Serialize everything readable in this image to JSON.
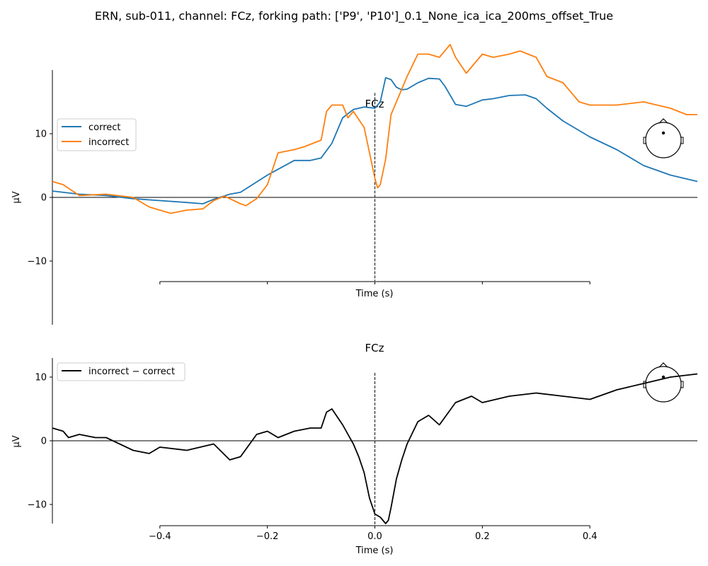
{
  "figure": {
    "suptitle": "ERN, sub-011, channel: FCz, forking path: ['P9', 'P10']_0.1_None_ica_ica_200ms_offset_True"
  },
  "chart_data": [
    {
      "type": "line",
      "title": "FCz",
      "xlabel": "Time (s)",
      "ylabel": "µV",
      "xlim": [
        -0.6,
        0.6
      ],
      "ylim": [
        -20,
        20
      ],
      "yticks": [
        -10,
        0,
        10
      ],
      "ytick_labels": [
        "−10",
        "0",
        "10"
      ],
      "xticks": [
        -0.4,
        -0.2,
        0.0,
        0.2,
        0.4
      ],
      "xtick_labels": [
        "",
        "",
        "",
        "",
        ""
      ],
      "vline_x": 0.0,
      "hline_y": 0,
      "grid": false,
      "legend_position": "center-left",
      "series": [
        {
          "name": "correct",
          "color": "#1f77b4",
          "x": [
            -0.6,
            -0.55,
            -0.5,
            -0.45,
            -0.4,
            -0.35,
            -0.32,
            -0.3,
            -0.27,
            -0.25,
            -0.2,
            -0.15,
            -0.12,
            -0.1,
            -0.08,
            -0.06,
            -0.04,
            -0.02,
            0.0,
            0.01,
            0.02,
            0.03,
            0.04,
            0.05,
            0.06,
            0.08,
            0.1,
            0.12,
            0.13,
            0.15,
            0.17,
            0.2,
            0.22,
            0.25,
            0.28,
            0.3,
            0.32,
            0.35,
            0.4,
            0.45,
            0.5,
            0.55,
            0.6
          ],
          "y": [
            1.0,
            0.5,
            0.3,
            -0.2,
            -0.5,
            -0.8,
            -1.0,
            -0.3,
            0.5,
            0.8,
            3.5,
            5.8,
            5.8,
            6.2,
            8.5,
            12.5,
            13.8,
            14.2,
            14.0,
            15.0,
            18.8,
            18.5,
            17.3,
            16.9,
            17.0,
            18.0,
            18.7,
            18.6,
            17.5,
            14.6,
            14.3,
            15.3,
            15.5,
            16.0,
            16.1,
            15.5,
            14.0,
            12.0,
            9.5,
            7.5,
            5.0,
            3.5,
            2.5
          ]
        },
        {
          "name": "incorrect",
          "color": "#ff7f0e",
          "x": [
            -0.6,
            -0.58,
            -0.55,
            -0.5,
            -0.45,
            -0.42,
            -0.4,
            -0.38,
            -0.35,
            -0.32,
            -0.3,
            -0.28,
            -0.25,
            -0.24,
            -0.22,
            -0.2,
            -0.18,
            -0.15,
            -0.13,
            -0.1,
            -0.09,
            -0.08,
            -0.06,
            -0.05,
            -0.04,
            -0.02,
            -0.01,
            0.0,
            0.005,
            0.01,
            0.02,
            0.03,
            0.04,
            0.06,
            0.08,
            0.1,
            0.12,
            0.14,
            0.15,
            0.17,
            0.2,
            0.22,
            0.25,
            0.27,
            0.3,
            0.32,
            0.35,
            0.38,
            0.4,
            0.45,
            0.5,
            0.55,
            0.58,
            0.6
          ],
          "y": [
            2.5,
            2.0,
            0.3,
            0.5,
            0.0,
            -1.5,
            -2.0,
            -2.5,
            -2.0,
            -1.8,
            -0.5,
            0.2,
            -1.0,
            -1.3,
            -0.2,
            2.0,
            7.0,
            7.5,
            8.0,
            9.0,
            13.5,
            14.5,
            14.5,
            12.5,
            13.5,
            11.0,
            7.0,
            3.0,
            1.5,
            2.0,
            6.0,
            13.0,
            15.0,
            19.0,
            22.5,
            22.5,
            22.0,
            24.0,
            22.0,
            19.5,
            22.5,
            22.0,
            22.5,
            23.0,
            22.0,
            19.0,
            18.0,
            15.0,
            14.5,
            14.5,
            15.0,
            14.0,
            13.0,
            13.0
          ]
        }
      ]
    },
    {
      "type": "line",
      "title": "FCz",
      "xlabel": "Time (s)",
      "ylabel": "µV",
      "xlim": [
        -0.6,
        0.6
      ],
      "ylim": [
        -13,
        13
      ],
      "yticks": [
        -10,
        0,
        10
      ],
      "ytick_labels": [
        "−10",
        "0",
        "10"
      ],
      "xticks": [
        -0.4,
        -0.2,
        0.0,
        0.2,
        0.4
      ],
      "xtick_labels": [
        "−0.4",
        "−0.2",
        "0.0",
        "0.2",
        "0.4"
      ],
      "vline_x": 0.0,
      "hline_y": 0,
      "grid": false,
      "legend_position": "top-left",
      "series": [
        {
          "name": "incorrect − correct",
          "color": "#000000",
          "x": [
            -0.6,
            -0.58,
            -0.57,
            -0.55,
            -0.52,
            -0.5,
            -0.45,
            -0.42,
            -0.4,
            -0.35,
            -0.3,
            -0.27,
            -0.25,
            -0.22,
            -0.2,
            -0.18,
            -0.15,
            -0.12,
            -0.1,
            -0.09,
            -0.08,
            -0.06,
            -0.05,
            -0.04,
            -0.03,
            -0.02,
            -0.01,
            0.0,
            0.01,
            0.02,
            0.025,
            0.03,
            0.04,
            0.05,
            0.06,
            0.08,
            0.1,
            0.12,
            0.15,
            0.18,
            0.2,
            0.25,
            0.3,
            0.35,
            0.4,
            0.45,
            0.5,
            0.55,
            0.6
          ],
          "y": [
            2.0,
            1.5,
            0.5,
            1.0,
            0.5,
            0.5,
            -1.5,
            -2.0,
            -1.0,
            -1.5,
            -0.5,
            -3.0,
            -2.5,
            1.0,
            1.5,
            0.5,
            1.5,
            2.0,
            2.0,
            4.5,
            5.0,
            2.5,
            1.0,
            -0.5,
            -2.5,
            -5.0,
            -9.0,
            -11.5,
            -12.0,
            -13.0,
            -12.5,
            -10.5,
            -6.0,
            -3.0,
            -0.5,
            3.0,
            4.0,
            2.5,
            6.0,
            7.0,
            6.0,
            7.0,
            7.5,
            7.0,
            6.5,
            8.0,
            9.0,
            10.0,
            10.5
          ]
        }
      ]
    }
  ]
}
